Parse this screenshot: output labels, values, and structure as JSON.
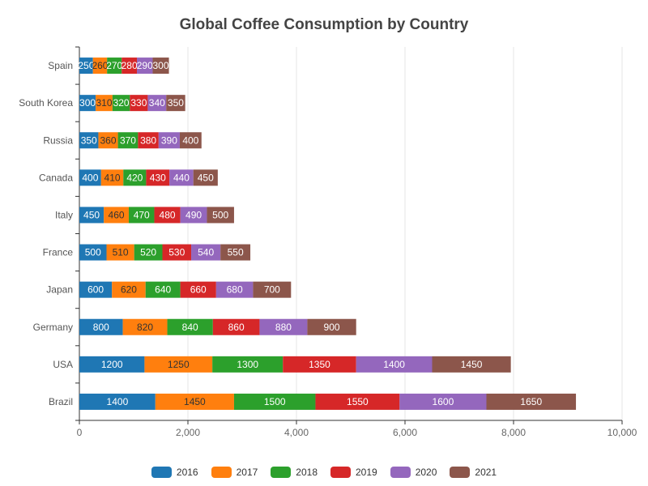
{
  "chart_data": {
    "type": "bar",
    "orientation": "horizontal",
    "stacked": true,
    "title": "Global Coffee Consumption by Country",
    "categories": [
      "Brazil",
      "USA",
      "Germany",
      "Japan",
      "France",
      "Italy",
      "Canada",
      "Russia",
      "South Korea",
      "Spain"
    ],
    "series": [
      {
        "name": "2016",
        "color": "#1f77b4",
        "values": [
          1400,
          1200,
          800,
          600,
          500,
          450,
          400,
          350,
          300,
          250
        ]
      },
      {
        "name": "2017",
        "color": "#ff7f0e",
        "values": [
          1450,
          1250,
          820,
          620,
          510,
          460,
          410,
          360,
          310,
          260
        ]
      },
      {
        "name": "2018",
        "color": "#2ca02c",
        "values": [
          1500,
          1300,
          840,
          640,
          520,
          470,
          420,
          370,
          320,
          270
        ]
      },
      {
        "name": "2019",
        "color": "#d62728",
        "values": [
          1550,
          1350,
          860,
          660,
          530,
          480,
          430,
          380,
          330,
          280
        ]
      },
      {
        "name": "2020",
        "color": "#9467bd",
        "values": [
          1600,
          1400,
          880,
          680,
          540,
          490,
          440,
          390,
          340,
          290
        ]
      },
      {
        "name": "2021",
        "color": "#8c564b",
        "values": [
          1650,
          1450,
          900,
          700,
          550,
          500,
          450,
          400,
          350,
          300
        ]
      }
    ],
    "xlim": [
      0,
      10000
    ],
    "xticks": [
      0,
      2000,
      4000,
      6000,
      8000,
      10000
    ],
    "xtick_labels": [
      "0",
      "2,000",
      "4,000",
      "6,000",
      "8,000",
      "10,000"
    ],
    "xlabel": "",
    "ylabel": "",
    "grid": "vertical",
    "legend_position": "bottom-center"
  }
}
